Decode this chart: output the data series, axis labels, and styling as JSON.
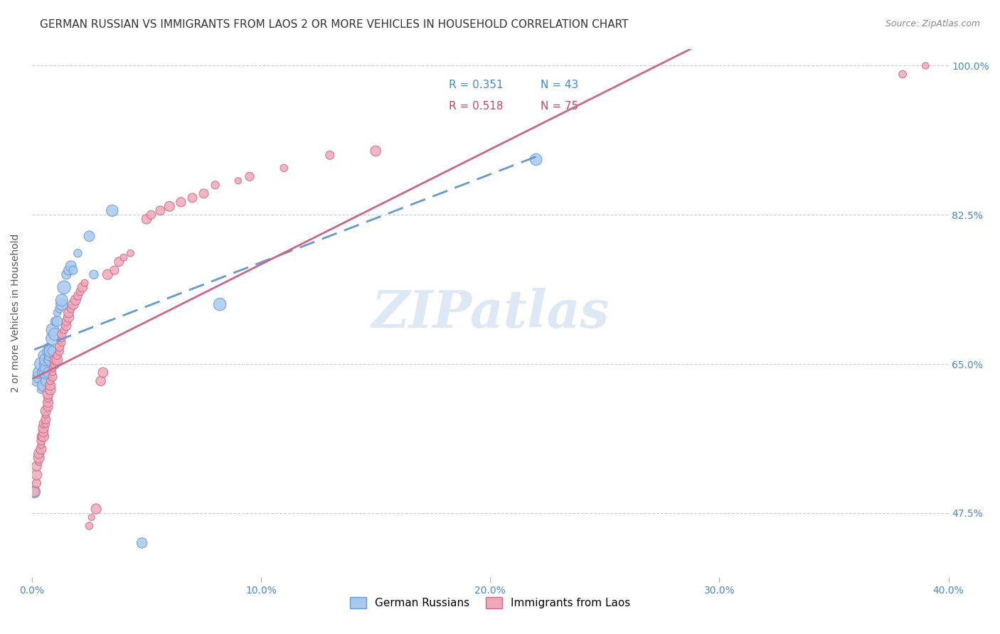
{
  "title": "GERMAN RUSSIAN VS IMMIGRANTS FROM LAOS 2 OR MORE VEHICLES IN HOUSEHOLD CORRELATION CHART",
  "source": "Source: ZipAtlas.com",
  "xlabel": "",
  "ylabel": "2 or more Vehicles in Household",
  "xlim": [
    0.0,
    0.4
  ],
  "ylim": [
    0.4,
    1.02
  ],
  "yticks": [
    0.475,
    0.65,
    0.825,
    1.0
  ],
  "ytick_labels": [
    "47.5%",
    "65.0%",
    "82.5%",
    "100.0%"
  ],
  "xticks": [
    0.0,
    0.1,
    0.2,
    0.3,
    0.4
  ],
  "xtick_labels": [
    "0.0%",
    "10.0%",
    "20.0%",
    "30.0%",
    "40.0%"
  ],
  "series1_label": "German Russians",
  "series1_R": 0.351,
  "series1_N": 43,
  "series1_color": "#a8c8f0",
  "series1_line_color": "#6699cc",
  "series2_label": "Immigrants from Laos",
  "series2_R": 0.518,
  "series2_N": 75,
  "series2_color": "#f0a8b8",
  "series2_line_color": "#cc6688",
  "watermark": "ZIPatlas",
  "watermark_color": "#dde8f5",
  "legend_R1_color": "#4488cc",
  "legend_R2_color": "#cc4466",
  "legend_N1_color": "#4488cc",
  "legend_N2_color": "#cc4466",
  "series1_x": [
    0.001,
    0.002,
    0.003,
    0.003,
    0.004,
    0.004,
    0.005,
    0.005,
    0.005,
    0.005,
    0.006,
    0.006,
    0.006,
    0.006,
    0.007,
    0.007,
    0.007,
    0.007,
    0.008,
    0.008,
    0.008,
    0.009,
    0.009,
    0.009,
    0.01,
    0.01,
    0.011,
    0.011,
    0.012,
    0.013,
    0.013,
    0.014,
    0.015,
    0.016,
    0.017,
    0.018,
    0.02,
    0.025,
    0.027,
    0.035,
    0.048,
    0.082,
    0.22
  ],
  "series1_y": [
    0.5,
    0.63,
    0.635,
    0.64,
    0.62,
    0.65,
    0.625,
    0.64,
    0.65,
    0.66,
    0.63,
    0.64,
    0.645,
    0.655,
    0.64,
    0.655,
    0.665,
    0.67,
    0.655,
    0.66,
    0.665,
    0.665,
    0.68,
    0.69,
    0.685,
    0.7,
    0.7,
    0.71,
    0.715,
    0.72,
    0.725,
    0.74,
    0.755,
    0.76,
    0.765,
    0.76,
    0.78,
    0.8,
    0.755,
    0.83,
    0.44,
    0.72,
    0.89
  ],
  "series2_x": [
    0.001,
    0.002,
    0.002,
    0.002,
    0.003,
    0.003,
    0.003,
    0.004,
    0.004,
    0.004,
    0.004,
    0.005,
    0.005,
    0.005,
    0.005,
    0.006,
    0.006,
    0.006,
    0.006,
    0.007,
    0.007,
    0.007,
    0.007,
    0.008,
    0.008,
    0.008,
    0.009,
    0.009,
    0.009,
    0.01,
    0.01,
    0.011,
    0.011,
    0.012,
    0.012,
    0.013,
    0.013,
    0.013,
    0.014,
    0.015,
    0.015,
    0.016,
    0.016,
    0.017,
    0.018,
    0.019,
    0.02,
    0.021,
    0.022,
    0.023,
    0.025,
    0.026,
    0.028,
    0.03,
    0.031,
    0.033,
    0.036,
    0.038,
    0.04,
    0.043,
    0.05,
    0.052,
    0.056,
    0.06,
    0.065,
    0.07,
    0.075,
    0.08,
    0.09,
    0.095,
    0.11,
    0.13,
    0.15,
    0.38,
    0.39
  ],
  "series2_y": [
    0.5,
    0.51,
    0.52,
    0.53,
    0.535,
    0.54,
    0.545,
    0.55,
    0.555,
    0.56,
    0.565,
    0.565,
    0.57,
    0.575,
    0.58,
    0.58,
    0.585,
    0.59,
    0.595,
    0.6,
    0.605,
    0.61,
    0.615,
    0.62,
    0.625,
    0.63,
    0.635,
    0.64,
    0.645,
    0.65,
    0.655,
    0.655,
    0.66,
    0.665,
    0.67,
    0.675,
    0.68,
    0.685,
    0.69,
    0.695,
    0.7,
    0.705,
    0.71,
    0.715,
    0.72,
    0.725,
    0.73,
    0.735,
    0.74,
    0.745,
    0.46,
    0.47,
    0.48,
    0.63,
    0.64,
    0.755,
    0.76,
    0.77,
    0.775,
    0.78,
    0.82,
    0.825,
    0.83,
    0.835,
    0.84,
    0.845,
    0.85,
    0.86,
    0.865,
    0.87,
    0.88,
    0.895,
    0.9,
    0.99,
    1.0
  ],
  "series1_size": 80,
  "series2_size": 60,
  "grid_color": "#cccccc",
  "grid_style": "--",
  "bg_color": "#ffffff",
  "title_fontsize": 11,
  "label_fontsize": 10,
  "tick_fontsize": 10
}
